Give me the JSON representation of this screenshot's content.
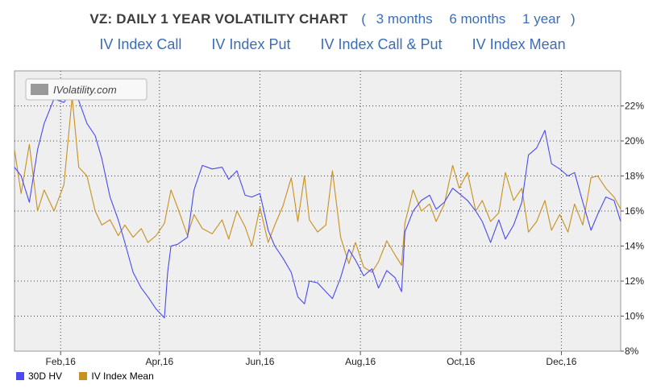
{
  "header": {
    "title": "VZ: DAILY 1 YEAR VOLATILITY CHART",
    "open_paren": "(",
    "close_paren": ")",
    "range_links": [
      "3 months",
      "6 months",
      "1 year"
    ],
    "index_links": [
      "IV Index Call",
      "IV Index Put",
      "IV Index Call & Put",
      "IV Index Mean"
    ]
  },
  "watermark": "IVolatility.com",
  "chart_data": {
    "type": "line",
    "title": "",
    "xlabel": "",
    "ylabel": "",
    "ylim": [
      8,
      24
    ],
    "yticks": [
      8,
      10,
      12,
      14,
      16,
      18,
      20,
      22
    ],
    "ytick_labels": [
      "8%",
      "10%",
      "12%",
      "14%",
      "16%",
      "18%",
      "20%",
      "22%"
    ],
    "x_tick_labels": [
      "Feb,16",
      "Apr,16",
      "Jun,16",
      "Aug,16",
      "Oct,16",
      "Dec,16"
    ],
    "x_tick_dates": [
      "2016-02-01",
      "2016-04-01",
      "2016-06-01",
      "2016-08-01",
      "2016-10-01",
      "2016-12-01"
    ],
    "x_range": [
      "2016-01-04",
      "2017-01-06"
    ],
    "grid": true,
    "legend_position": "bottom-left",
    "series": [
      {
        "name": "30D HV",
        "color": "#4a4af0",
        "points": [
          [
            "2016-01-04",
            18.5
          ],
          [
            "2016-01-08",
            18.0
          ],
          [
            "2016-01-13",
            16.5
          ],
          [
            "2016-01-18",
            19.5
          ],
          [
            "2016-01-22",
            21.0
          ],
          [
            "2016-01-28",
            22.4
          ],
          [
            "2016-02-03",
            22.2
          ],
          [
            "2016-02-08",
            22.9
          ],
          [
            "2016-02-12",
            22.3
          ],
          [
            "2016-02-17",
            21.0
          ],
          [
            "2016-02-22",
            20.3
          ],
          [
            "2016-02-26",
            19.0
          ],
          [
            "2016-03-02",
            16.8
          ],
          [
            "2016-03-07",
            15.5
          ],
          [
            "2016-03-11",
            14.2
          ],
          [
            "2016-03-16",
            12.5
          ],
          [
            "2016-03-21",
            11.6
          ],
          [
            "2016-03-25",
            11.1
          ],
          [
            "2016-03-30",
            10.4
          ],
          [
            "2016-04-04",
            9.9
          ],
          [
            "2016-04-06",
            12.5
          ],
          [
            "2016-04-08",
            14.0
          ],
          [
            "2016-04-12",
            14.1
          ],
          [
            "2016-04-18",
            14.5
          ],
          [
            "2016-04-22",
            17.2
          ],
          [
            "2016-04-27",
            18.6
          ],
          [
            "2016-05-03",
            18.4
          ],
          [
            "2016-05-09",
            18.5
          ],
          [
            "2016-05-13",
            17.8
          ],
          [
            "2016-05-18",
            18.3
          ],
          [
            "2016-05-23",
            16.9
          ],
          [
            "2016-05-27",
            16.8
          ],
          [
            "2016-06-01",
            17.0
          ],
          [
            "2016-06-06",
            14.9
          ],
          [
            "2016-06-10",
            14.0
          ],
          [
            "2016-06-15",
            13.3
          ],
          [
            "2016-06-20",
            12.5
          ],
          [
            "2016-06-24",
            11.1
          ],
          [
            "2016-06-28",
            10.7
          ],
          [
            "2016-07-01",
            12.0
          ],
          [
            "2016-07-06",
            11.9
          ],
          [
            "2016-07-11",
            11.4
          ],
          [
            "2016-07-15",
            11.0
          ],
          [
            "2016-07-20",
            12.2
          ],
          [
            "2016-07-25",
            13.8
          ],
          [
            "2016-07-29",
            13.2
          ],
          [
            "2016-08-03",
            12.3
          ],
          [
            "2016-08-08",
            12.7
          ],
          [
            "2016-08-12",
            11.6
          ],
          [
            "2016-08-17",
            12.6
          ],
          [
            "2016-08-22",
            12.2
          ],
          [
            "2016-08-26",
            11.4
          ],
          [
            "2016-08-28",
            14.8
          ],
          [
            "2016-09-02",
            16.0
          ],
          [
            "2016-09-07",
            16.6
          ],
          [
            "2016-09-12",
            16.9
          ],
          [
            "2016-09-16",
            16.1
          ],
          [
            "2016-09-21",
            16.5
          ],
          [
            "2016-09-26",
            17.3
          ],
          [
            "2016-09-30",
            17.0
          ],
          [
            "2016-10-05",
            16.6
          ],
          [
            "2016-10-10",
            16.0
          ],
          [
            "2016-10-14",
            15.4
          ],
          [
            "2016-10-19",
            14.2
          ],
          [
            "2016-10-24",
            15.5
          ],
          [
            "2016-10-28",
            14.4
          ],
          [
            "2016-11-02",
            15.2
          ],
          [
            "2016-11-07",
            16.5
          ],
          [
            "2016-11-11",
            19.2
          ],
          [
            "2016-11-16",
            19.6
          ],
          [
            "2016-11-21",
            20.6
          ],
          [
            "2016-11-25",
            18.7
          ],
          [
            "2016-11-30",
            18.4
          ],
          [
            "2016-12-05",
            18.0
          ],
          [
            "2016-12-09",
            18.2
          ],
          [
            "2016-12-14",
            16.5
          ],
          [
            "2016-12-19",
            14.9
          ],
          [
            "2016-12-23",
            15.8
          ],
          [
            "2016-12-28",
            16.8
          ],
          [
            "2017-01-02",
            16.6
          ],
          [
            "2017-01-06",
            15.4
          ]
        ]
      },
      {
        "name": "IV Index Mean",
        "color": "#c8901e",
        "points": [
          [
            "2016-01-04",
            19.5
          ],
          [
            "2016-01-08",
            17.0
          ],
          [
            "2016-01-13",
            19.8
          ],
          [
            "2016-01-18",
            16.0
          ],
          [
            "2016-01-22",
            17.2
          ],
          [
            "2016-01-28",
            16.0
          ],
          [
            "2016-02-03",
            17.5
          ],
          [
            "2016-02-08",
            22.5
          ],
          [
            "2016-02-12",
            18.5
          ],
          [
            "2016-02-17",
            18.0
          ],
          [
            "2016-02-22",
            16.0
          ],
          [
            "2016-02-26",
            15.2
          ],
          [
            "2016-03-02",
            15.5
          ],
          [
            "2016-03-07",
            14.6
          ],
          [
            "2016-03-11",
            15.2
          ],
          [
            "2016-03-16",
            14.5
          ],
          [
            "2016-03-21",
            15.0
          ],
          [
            "2016-03-25",
            14.2
          ],
          [
            "2016-03-30",
            14.6
          ],
          [
            "2016-04-04",
            15.3
          ],
          [
            "2016-04-08",
            17.2
          ],
          [
            "2016-04-12",
            16.2
          ],
          [
            "2016-04-18",
            14.6
          ],
          [
            "2016-04-22",
            15.8
          ],
          [
            "2016-04-27",
            15.0
          ],
          [
            "2016-05-03",
            14.7
          ],
          [
            "2016-05-09",
            15.5
          ],
          [
            "2016-05-13",
            14.4
          ],
          [
            "2016-05-18",
            16.0
          ],
          [
            "2016-05-23",
            15.1
          ],
          [
            "2016-05-27",
            14.0
          ],
          [
            "2016-06-01",
            16.2
          ],
          [
            "2016-06-06",
            14.2
          ],
          [
            "2016-06-10",
            15.2
          ],
          [
            "2016-06-15",
            16.3
          ],
          [
            "2016-06-20",
            17.9
          ],
          [
            "2016-06-24",
            15.4
          ],
          [
            "2016-06-28",
            18.0
          ],
          [
            "2016-07-01",
            15.5
          ],
          [
            "2016-07-06",
            14.8
          ],
          [
            "2016-07-11",
            15.2
          ],
          [
            "2016-07-15",
            18.3
          ],
          [
            "2016-07-20",
            14.5
          ],
          [
            "2016-07-25",
            13.0
          ],
          [
            "2016-07-29",
            14.2
          ],
          [
            "2016-08-03",
            12.8
          ],
          [
            "2016-08-08",
            12.5
          ],
          [
            "2016-08-12",
            13.1
          ],
          [
            "2016-08-17",
            14.3
          ],
          [
            "2016-08-22",
            13.5
          ],
          [
            "2016-08-26",
            12.9
          ],
          [
            "2016-08-28",
            15.3
          ],
          [
            "2016-09-02",
            17.2
          ],
          [
            "2016-09-07",
            16.0
          ],
          [
            "2016-09-12",
            16.4
          ],
          [
            "2016-09-16",
            15.4
          ],
          [
            "2016-09-21",
            16.4
          ],
          [
            "2016-09-26",
            18.6
          ],
          [
            "2016-09-30",
            17.3
          ],
          [
            "2016-10-05",
            18.2
          ],
          [
            "2016-10-10",
            16.0
          ],
          [
            "2016-10-14",
            16.6
          ],
          [
            "2016-10-19",
            15.4
          ],
          [
            "2016-10-24",
            15.9
          ],
          [
            "2016-10-28",
            18.2
          ],
          [
            "2016-11-02",
            16.6
          ],
          [
            "2016-11-07",
            17.3
          ],
          [
            "2016-11-11",
            14.8
          ],
          [
            "2016-11-16",
            15.4
          ],
          [
            "2016-11-21",
            16.6
          ],
          [
            "2016-11-25",
            14.9
          ],
          [
            "2016-11-30",
            15.8
          ],
          [
            "2016-12-05",
            14.8
          ],
          [
            "2016-12-09",
            16.4
          ],
          [
            "2016-12-14",
            15.2
          ],
          [
            "2016-12-19",
            17.9
          ],
          [
            "2016-12-23",
            18.0
          ],
          [
            "2016-12-28",
            17.3
          ],
          [
            "2017-01-02",
            16.8
          ],
          [
            "2017-01-06",
            16.1
          ]
        ]
      }
    ]
  }
}
